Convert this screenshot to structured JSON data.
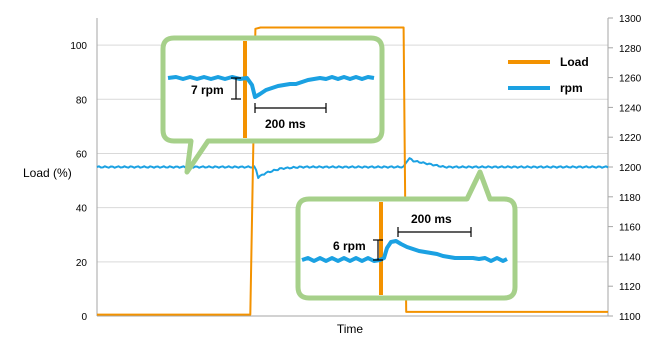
{
  "chart_data": {
    "type": "line",
    "title": "",
    "xlabel": "Time",
    "ylabel": "Load (%)",
    "y2label": "",
    "ylim": [
      0,
      110
    ],
    "y2lim": [
      1100,
      1300
    ],
    "y_ticks": [
      0,
      20,
      40,
      60,
      80,
      100
    ],
    "y2_ticks": [
      1100,
      1120,
      1140,
      1160,
      1180,
      1200,
      1220,
      1240,
      1260,
      1280,
      1300
    ],
    "grid": true,
    "legend": {
      "position": "top-right"
    },
    "series": [
      {
        "name": "Load",
        "axis": "left",
        "color": "#f39200",
        "x": [
          0,
          0.3,
          0.31,
          0.32,
          0.6,
          0.605,
          0.61,
          1.0
        ],
        "values": [
          0.5,
          0.5,
          106,
          106.5,
          106.5,
          1.5,
          1.5,
          1.5
        ]
      },
      {
        "name": "rpm",
        "axis": "right",
        "color": "#1ba1e2",
        "x": [
          0,
          0.31,
          0.315,
          0.33,
          0.36,
          0.4,
          0.6,
          0.61,
          0.62,
          0.65,
          0.68,
          1.0
        ],
        "values": [
          1200,
          1200,
          1193,
          1196,
          1199,
          1200,
          1200,
          1206,
          1204,
          1202,
          1200,
          1200
        ]
      }
    ],
    "annotations": [
      {
        "text": "7 rpm",
        "type": "amplitude"
      },
      {
        "text": "200 ms",
        "type": "duration"
      },
      {
        "text": "6 rpm",
        "type": "amplitude"
      },
      {
        "text": "200 ms",
        "type": "duration"
      }
    ]
  },
  "colors": {
    "callout_border": "#a6d08a",
    "grid": "#d9d9d9",
    "axis": "#a6a6a6"
  }
}
